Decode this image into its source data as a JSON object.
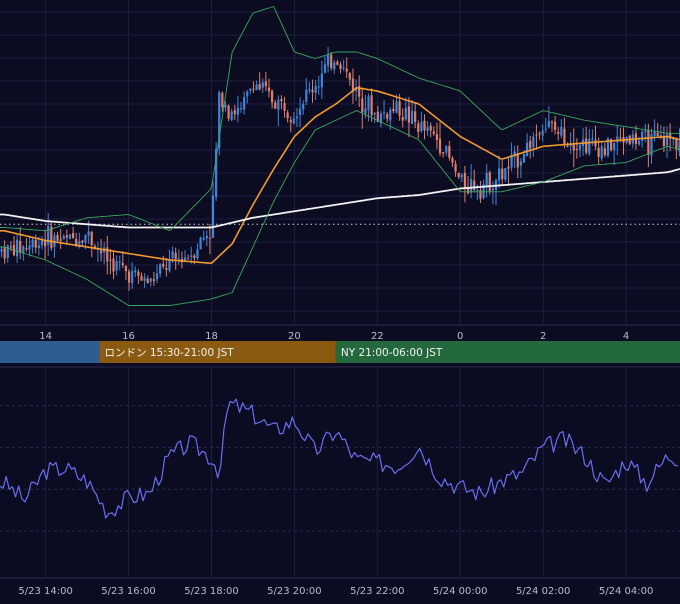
{
  "colors": {
    "background": "#0b0b22",
    "grid": "#1d2140",
    "candle_up": "#3f86d9",
    "candle_down": "#e07f68",
    "ma_short": "#f29a2e",
    "ma_long": "#f2f2f2",
    "bollinger": "#3aa85c",
    "oscillator": "#6a6ff2",
    "session_tokyo": "#2f5c91",
    "session_london": "#8a5a10",
    "session_ny": "#24693c"
  },
  "price_axis": {
    "tick_labels": [
      "14",
      "16",
      "18",
      "20",
      "22",
      "0",
      "2",
      "4"
    ],
    "tick_hours": [
      14,
      16,
      18,
      20,
      22,
      24,
      26,
      28
    ]
  },
  "sessions": [
    {
      "label": "",
      "start_hour": 12.9,
      "end_hour": 15.3,
      "color_key": "session_tokyo"
    },
    {
      "label": "ロンドン 15:30-21:00 JST",
      "start_hour": 15.3,
      "end_hour": 21.0,
      "color_key": "session_london"
    },
    {
      "label": "NY 21:00-06:00 JST",
      "start_hour": 21.0,
      "end_hour": 29.3,
      "color_key": "session_ny"
    }
  ],
  "bottom_axis": {
    "labels": [
      "5/23 14:00",
      "5/23 16:00",
      "5/23 18:00",
      "5/23 20:00",
      "5/23 22:00",
      "5/24 00:00",
      "5/24 02:00",
      "5/24 04:00"
    ],
    "hours": [
      14,
      16,
      18,
      20,
      22,
      24,
      26,
      28
    ]
  },
  "chart_data": [
    {
      "type": "line",
      "panel": "price",
      "x_unit": "hour JST (5/23 00:00 = 0)",
      "x_range": [
        12.9,
        29.3
      ],
      "y_range": [
        0,
        100
      ],
      "reference_level": 31,
      "series": [
        {
          "role": "close",
          "color_key": "candle_up",
          "x": [
            13,
            13.5,
            14,
            14.5,
            15,
            15.5,
            16,
            16.5,
            17,
            17.5,
            18,
            18.2,
            18.4,
            18.7,
            19,
            19.5,
            20,
            20.5,
            21,
            21.5,
            22,
            22.5,
            23,
            23.5,
            24,
            24.5,
            25,
            25.5,
            26,
            26.5,
            27,
            27.5,
            28,
            28.5,
            29,
            29.3
          ],
          "y": [
            23,
            24,
            27,
            26,
            28,
            20,
            16,
            13,
            19,
            22,
            30,
            72,
            67,
            65,
            75,
            69,
            66,
            74,
            83,
            72,
            64,
            67,
            61,
            57,
            44,
            43,
            46,
            53,
            62,
            58,
            56,
            54,
            58,
            56,
            57,
            57
          ]
        },
        {
          "role": "ma_short",
          "color_key": "ma_short",
          "x": [
            13,
            14,
            15,
            16,
            17,
            18,
            18.5,
            19,
            19.5,
            20,
            20.5,
            21,
            21.5,
            22,
            23,
            24,
            25,
            26,
            27,
            28,
            29,
            29.3
          ],
          "y": [
            29,
            26,
            24,
            22,
            20,
            19,
            25,
            37,
            48,
            58,
            64,
            68,
            73,
            72,
            68,
            58,
            51,
            55,
            56,
            57,
            58,
            57
          ]
        },
        {
          "role": "ma_long",
          "color_key": "ma_long",
          "x": [
            13,
            14,
            15,
            16,
            17,
            18,
            19,
            20,
            21,
            22,
            23,
            24,
            25,
            26,
            27,
            28,
            29,
            29.3
          ],
          "y": [
            34,
            32,
            31,
            30,
            30,
            30,
            33,
            35,
            37,
            39,
            40,
            42,
            43,
            44,
            45,
            46,
            47,
            48
          ]
        },
        {
          "role": "bollinger_upper",
          "color_key": "bollinger",
          "x": [
            13,
            14,
            15,
            16,
            17,
            18,
            18.5,
            19,
            19.5,
            20,
            20.5,
            21,
            21.5,
            22,
            23,
            24,
            25,
            26,
            27,
            28,
            29,
            29.3
          ],
          "y": [
            30,
            29,
            33,
            34,
            29,
            42,
            84,
            96,
            98,
            84,
            82,
            84,
            84,
            82,
            76,
            72,
            60,
            66,
            63,
            61,
            59,
            59
          ]
        },
        {
          "role": "bollinger_lower",
          "color_key": "bollinger",
          "x": [
            13,
            14,
            15,
            16,
            17,
            18,
            18.5,
            19,
            19.5,
            20,
            20.5,
            21,
            21.5,
            22,
            23,
            24,
            25,
            26,
            27,
            28,
            29,
            29.3
          ],
          "y": [
            24,
            20,
            14,
            6,
            6,
            8,
            10,
            24,
            38,
            50,
            60,
            63,
            66,
            63,
            57,
            41,
            41,
            44,
            49,
            50,
            55,
            54
          ]
        }
      ]
    },
    {
      "type": "line",
      "panel": "oscillator",
      "x_unit": "hour JST (5/23 00:00 = 0)",
      "x_range": [
        12.9,
        29.3
      ],
      "y_range": [
        0,
        100
      ],
      "gridlines": [
        22,
        42,
        62,
        82
      ],
      "series": [
        {
          "role": "oscillator",
          "color_key": "oscillator",
          "x": [
            13,
            13.5,
            14,
            14.5,
            15,
            15.5,
            16,
            16.5,
            17,
            17.5,
            18,
            18.2,
            18.4,
            18.7,
            19,
            19.5,
            20,
            20.5,
            21,
            21.5,
            22,
            22.5,
            23,
            23.5,
            24,
            24.5,
            25,
            25.5,
            26,
            26.5,
            27,
            27.5,
            28,
            28.5,
            29,
            29.3
          ],
          "y": [
            45,
            37,
            51,
            52,
            46,
            31,
            38,
            40,
            58,
            64,
            57,
            50,
            83,
            81,
            78,
            70,
            75,
            60,
            70,
            56,
            55,
            53,
            63,
            48,
            43,
            40,
            46,
            50,
            62,
            66,
            58,
            44,
            56,
            45,
            58,
            57
          ]
        }
      ]
    }
  ]
}
